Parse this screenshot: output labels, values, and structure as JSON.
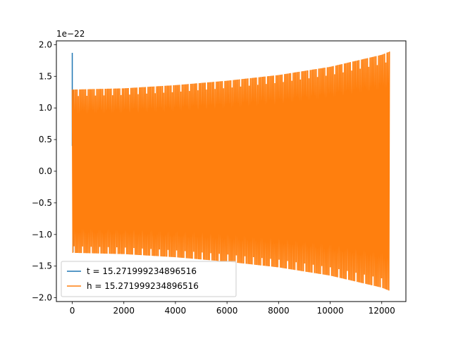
{
  "chart_data": {
    "type": "line",
    "title": "",
    "xlabel": "",
    "ylabel": "",
    "y_offset_label": "1e−22",
    "xlim": [
      -616,
      12936
    ],
    "ylim": [
      -2.06,
      2.06
    ],
    "x_ticks": [
      0,
      2000,
      4000,
      6000,
      8000,
      10000,
      12000
    ],
    "x_tick_labels": [
      "0",
      "2000",
      "4000",
      "6000",
      "8000",
      "10000",
      "12000"
    ],
    "y_ticks": [
      2.0,
      1.5,
      1.0,
      0.5,
      0.0,
      -0.5,
      -1.0,
      -1.5,
      -2.0
    ],
    "y_tick_labels": [
      "2.0",
      "1.5",
      "1.0",
      "0.5",
      "0.0",
      "−0.5",
      "−1.0",
      "−1.5",
      "−2.0"
    ],
    "grid": false,
    "legend_position": "lower-left",
    "series": [
      {
        "name": "t = 15.271999234896516",
        "color": "#1f77b4",
        "x": [
          0,
          0,
          0,
          30,
          30
        ],
        "y": [
          0.85,
          1.87,
          0.4,
          1.28,
          -1.28
        ]
      },
      {
        "name": "h = 15.271999234896516",
        "color": "#ff7f0e",
        "envelope": {
          "x": [
            0,
            2000,
            4000,
            6000,
            8000,
            10000,
            12000,
            12300
          ],
          "upper": [
            1.29,
            1.31,
            1.36,
            1.43,
            1.52,
            1.65,
            1.84,
            1.89
          ],
          "lower": [
            -1.29,
            -1.31,
            -1.36,
            -1.43,
            -1.52,
            -1.65,
            -1.84,
            -1.89
          ]
        },
        "oscillation_count": 260
      }
    ]
  }
}
